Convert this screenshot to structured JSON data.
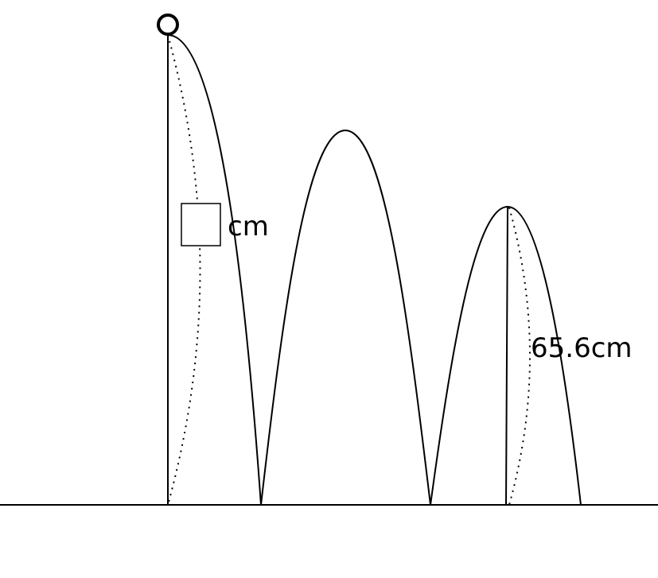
{
  "diagram": {
    "unit_label": "cm",
    "height_label": "65.6cm",
    "answer_box_value": ""
  },
  "colors": {
    "stroke": "#000000",
    "background": "#ffffff"
  }
}
